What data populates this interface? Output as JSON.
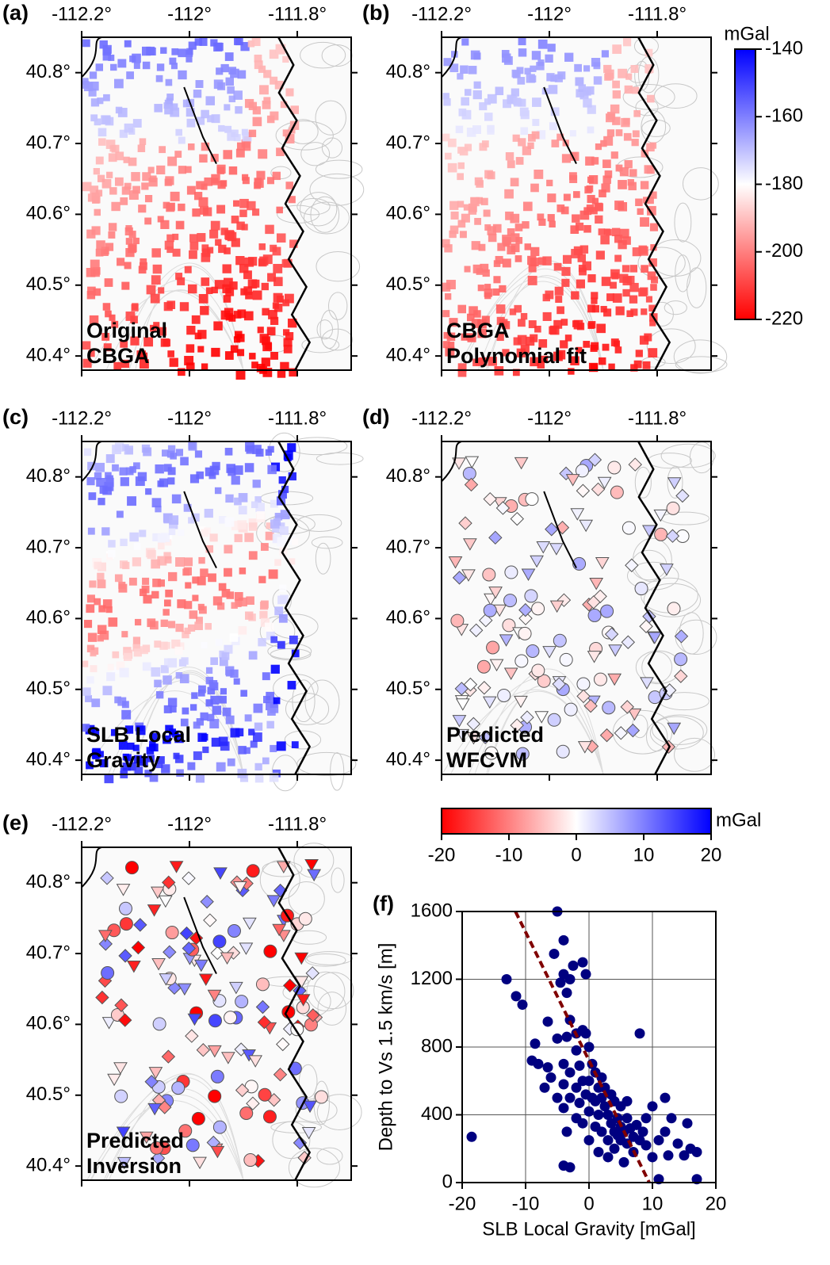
{
  "chart_data": [
    {
      "type": "map",
      "panel": "(a)",
      "caption": [
        "Original",
        "CBGA"
      ],
      "xlim": [
        -112.2,
        -111.7
      ],
      "ylim": [
        40.38,
        40.85
      ],
      "xticks": [
        {
          "value": -112.2,
          "label": "-112.2°"
        },
        {
          "value": -112,
          "label": "-112°"
        },
        {
          "value": -111.8,
          "label": "-111.8°"
        }
      ],
      "yticks": [
        {
          "value": 40.4,
          "label": "40.4°"
        },
        {
          "value": 40.5,
          "label": "40.5°"
        },
        {
          "value": 40.6,
          "label": "40.6°"
        },
        {
          "value": 40.7,
          "label": "40.7°"
        },
        {
          "value": 40.8,
          "label": "40.8°"
        }
      ]
    },
    {
      "type": "map",
      "panel": "(b)",
      "caption": [
        "CBGA",
        "Polynomial fit"
      ],
      "xlim": [
        -112.2,
        -111.7
      ],
      "ylim": [
        40.38,
        40.85
      ],
      "xticks": [
        {
          "value": -112.2,
          "label": "-112.2°"
        },
        {
          "value": -112,
          "label": "-112°"
        },
        {
          "value": -111.8,
          "label": "-111.8°"
        }
      ],
      "yticks": [
        {
          "value": 40.4,
          "label": "40.4°"
        },
        {
          "value": 40.5,
          "label": "40.5°"
        },
        {
          "value": 40.6,
          "label": "40.6°"
        },
        {
          "value": 40.7,
          "label": "40.7°"
        },
        {
          "value": 40.8,
          "label": "40.8°"
        }
      ]
    },
    {
      "type": "map",
      "panel": "(c)",
      "caption": [
        "SLB Local",
        "Gravity"
      ],
      "xlim": [
        -112.2,
        -111.7
      ],
      "ylim": [
        40.38,
        40.85
      ],
      "xticks": [
        {
          "value": -112.2,
          "label": "-112.2°"
        },
        {
          "value": -112,
          "label": "-112°"
        },
        {
          "value": -111.8,
          "label": "-111.8°"
        }
      ],
      "yticks": [
        {
          "value": 40.4,
          "label": "40.4°"
        },
        {
          "value": 40.5,
          "label": "40.5°"
        },
        {
          "value": 40.6,
          "label": "40.6°"
        },
        {
          "value": 40.7,
          "label": "40.7°"
        },
        {
          "value": 40.8,
          "label": "40.8°"
        }
      ]
    },
    {
      "type": "map",
      "panel": "(d)",
      "caption": [
        "Predicted",
        "WFCVM"
      ],
      "xlim": [
        -112.2,
        -111.7
      ],
      "ylim": [
        40.38,
        40.85
      ],
      "xticks": [
        {
          "value": -112.2,
          "label": "-112.2°"
        },
        {
          "value": -112,
          "label": "-112°"
        },
        {
          "value": -111.8,
          "label": "-111.8°"
        }
      ],
      "yticks": [
        {
          "value": 40.4,
          "label": "40.4°"
        },
        {
          "value": 40.5,
          "label": "40.5°"
        },
        {
          "value": 40.6,
          "label": "40.6°"
        },
        {
          "value": 40.7,
          "label": "40.7°"
        },
        {
          "value": 40.8,
          "label": "40.8°"
        }
      ]
    },
    {
      "type": "map",
      "panel": "(e)",
      "caption": [
        "Predicted",
        "Inversion"
      ],
      "xlim": [
        -112.2,
        -111.7
      ],
      "ylim": [
        40.38,
        40.85
      ],
      "xticks": [
        {
          "value": -112.2,
          "label": "-112.2°"
        },
        {
          "value": -112,
          "label": "-112°"
        },
        {
          "value": -111.8,
          "label": "-111.8°"
        }
      ],
      "yticks": [
        {
          "value": 40.4,
          "label": "40.4°"
        },
        {
          "value": 40.5,
          "label": "40.5°"
        },
        {
          "value": 40.6,
          "label": "40.6°"
        },
        {
          "value": 40.7,
          "label": "40.7°"
        },
        {
          "value": 40.8,
          "label": "40.8°"
        }
      ]
    },
    {
      "type": "colorbar",
      "orientation": "vertical",
      "label": "mGal",
      "ylim": [
        -220,
        -140
      ],
      "yticks": [
        -140,
        -160,
        -180,
        -200,
        -220
      ],
      "colors": [
        "#ff0000",
        "#ffffff",
        "#0000ff"
      ]
    },
    {
      "type": "colorbar",
      "orientation": "horizontal",
      "label": "mGal",
      "xlim": [
        -20,
        20
      ],
      "xticks": [
        -20,
        -10,
        0,
        10,
        20
      ],
      "colors": [
        "#ff0000",
        "#ffffff",
        "#0000ff"
      ]
    },
    {
      "type": "scatter",
      "panel": "(f)",
      "x_label": "SLB Local Gravity [mGal]",
      "y_label": "Depth to Vs 1.5 km/s [m]",
      "xlim": [
        -20,
        20
      ],
      "ylim": [
        0,
        1600
      ],
      "xticks": [
        -20,
        -10,
        0,
        10,
        20
      ],
      "yticks": [
        0,
        400,
        800,
        1200,
        1600
      ],
      "grid": true,
      "series": [
        {
          "color": "#000080",
          "x": [
            -18.5,
            -13,
            -11.5,
            -10.5,
            -9,
            -8.5,
            -8,
            -7,
            -6.5,
            -6.5,
            -6,
            -5.5,
            -5,
            -5,
            -5,
            -4.5,
            -4,
            -4,
            -4,
            -4,
            -4,
            -4,
            -3.5,
            -3.5,
            -3.5,
            -3,
            -3,
            -3,
            -3,
            -3,
            -2.5,
            -2,
            -2,
            -2,
            -2,
            -1.5,
            -1.5,
            -1,
            -1,
            -1,
            -1,
            -0.5,
            -0.5,
            -0.5,
            0,
            0,
            0,
            0,
            0.5,
            0.5,
            1,
            1,
            1,
            1.5,
            1.5,
            1.5,
            2,
            2,
            2,
            2.5,
            2.5,
            3,
            3,
            3,
            3.5,
            3.5,
            4,
            4,
            4,
            4.5,
            4.5,
            5,
            5,
            5,
            5.5,
            5.5,
            6,
            6,
            6,
            6.5,
            7,
            7,
            7.5,
            8,
            8,
            8.5,
            9,
            9,
            10,
            10,
            11,
            11,
            12,
            12,
            12.5,
            13,
            14,
            15,
            15.5,
            16,
            17,
            17
          ],
          "values": [
            270,
            1200,
            1100,
            1050,
            720,
            820,
            700,
            560,
            950,
            680,
            620,
            1350,
            1600,
            850,
            500,
            1180,
            1430,
            1230,
            700,
            580,
            440,
            100,
            1120,
            860,
            300,
            1200,
            960,
            650,
            500,
            90,
            1280,
            880,
            780,
            560,
            380,
            690,
            470,
            1300,
            900,
            600,
            350,
            1230,
            880,
            520,
            800,
            600,
            420,
            250,
            700,
            500,
            650,
            480,
            330,
            560,
            400,
            180,
            620,
            500,
            300,
            560,
            450,
            400,
            250,
            150,
            520,
            350,
            480,
            300,
            200,
            380,
            280,
            450,
            330,
            250,
            300,
            120,
            480,
            380,
            230,
            320,
            270,
            180,
            340,
            250,
            880,
            300,
            220,
            380,
            450,
            150,
            250,
            20,
            500,
            300,
            160,
            380,
            230,
            160,
            350,
            200,
            180,
            20
          ]
        }
      ],
      "fit_line": {
        "color": "#800000",
        "x": [
          -11.6,
          9.5
        ],
        "values": [
          1600,
          0
        ]
      }
    }
  ]
}
